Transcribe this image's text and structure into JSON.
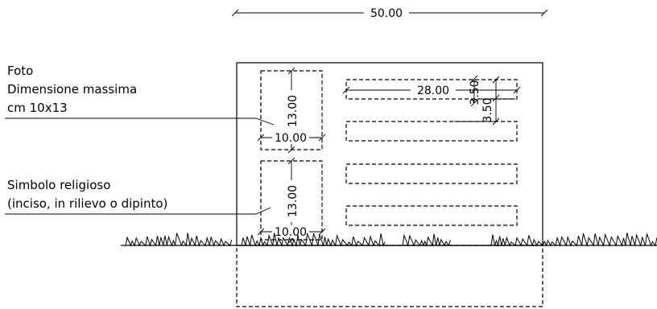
{
  "dimensions": {
    "overall_width": "50.00",
    "text_line_length": "28.00",
    "line_height_a": "3.50",
    "line_height_b": "3.50",
    "photo_height": "13.00",
    "photo_width": "10.00",
    "symbol_height": "13.00",
    "symbol_width": "10.00"
  },
  "notes": {
    "photo": [
      "Foto",
      "Dimensione massima",
      "cm 10x13"
    ],
    "symbol": [
      "Simbolo religioso",
      "(inciso, in rilievo o dipinto)"
    ]
  }
}
